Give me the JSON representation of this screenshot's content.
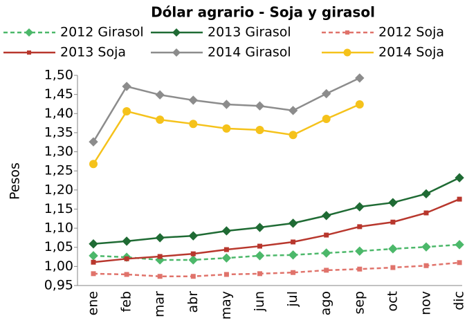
{
  "chart_data": {
    "type": "line",
    "title": "Dólar agrario - Soja y girasol",
    "y_label": "Pesos",
    "categories": [
      "ene",
      "feb",
      "mar",
      "abr",
      "may",
      "jun",
      "jul",
      "ago",
      "sep",
      "oct",
      "nov",
      "dic"
    ],
    "ylim": [
      0.95,
      1.5
    ],
    "yticks": [
      {
        "value": 0.95,
        "label": "0,95"
      },
      {
        "value": 1.0,
        "label": "1,00"
      },
      {
        "value": 1.05,
        "label": "1,05"
      },
      {
        "value": 1.1,
        "label": "1,10"
      },
      {
        "value": 1.15,
        "label": "1,15"
      },
      {
        "value": 1.2,
        "label": "1,20"
      },
      {
        "value": 1.25,
        "label": "1,25"
      },
      {
        "value": 1.3,
        "label": "1,30"
      },
      {
        "value": 1.35,
        "label": "1,35"
      },
      {
        "value": 1.4,
        "label": "1,40"
      },
      {
        "value": 1.45,
        "label": "1,45"
      },
      {
        "value": 1.5,
        "label": "1,50"
      }
    ],
    "grid": false,
    "series": [
      {
        "name": "2012 Girasol",
        "color": "#4cb86a",
        "marker": "diamond",
        "dashed": true,
        "values": [
          1.028,
          1.024,
          1.017,
          1.017,
          1.022,
          1.028,
          1.03,
          1.035,
          1.04,
          1.046,
          1.051,
          1.057
        ]
      },
      {
        "name": "2013 Girasol",
        "color": "#1f6b34",
        "marker": "diamond",
        "dashed": false,
        "values": [
          1.059,
          1.066,
          1.075,
          1.08,
          1.093,
          1.102,
          1.113,
          1.133,
          1.156,
          1.167,
          1.19,
          1.232
        ]
      },
      {
        "name": "2012 Soja",
        "color": "#e0736b",
        "marker": "square",
        "dashed": true,
        "values": [
          0.981,
          0.979,
          0.974,
          0.974,
          0.979,
          0.981,
          0.984,
          0.99,
          0.993,
          0.997,
          1.002,
          1.01
        ]
      },
      {
        "name": "2013 Soja",
        "color": "#b8372d",
        "marker": "square",
        "dashed": false,
        "values": [
          1.011,
          1.02,
          1.026,
          1.033,
          1.044,
          1.053,
          1.064,
          1.082,
          1.104,
          1.116,
          1.14,
          1.176
        ]
      },
      {
        "name": "2014 Girasol",
        "color": "#8c8c8c",
        "marker": "diamond",
        "dashed": false,
        "values": [
          1.326,
          1.471,
          1.449,
          1.435,
          1.424,
          1.42,
          1.408,
          1.452,
          1.493,
          null,
          null,
          null
        ]
      },
      {
        "name": "2014 Soja",
        "color": "#f5c21b",
        "marker": "circle",
        "dashed": false,
        "values": [
          1.268,
          1.406,
          1.384,
          1.373,
          1.361,
          1.357,
          1.344,
          1.386,
          1.424,
          null,
          null,
          null
        ]
      }
    ]
  }
}
